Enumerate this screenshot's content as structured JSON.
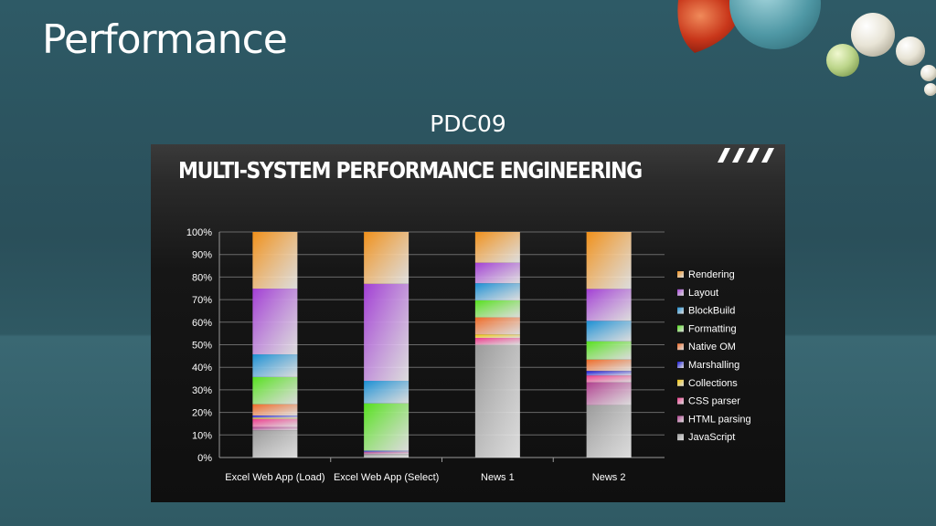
{
  "slide": {
    "title": "Performance",
    "subtitle": "PDC09",
    "panel_heading": "MULTI-SYSTEM PERFORMANCE ENGINEERING"
  },
  "chart_data": {
    "type": "bar",
    "stacked": "percent",
    "categories": [
      "Excel Web App (Load)",
      "Excel Web App (Select)",
      "News 1",
      "News 2"
    ],
    "series": [
      {
        "name": "JavaScript",
        "color": "#9a9a9a",
        "values": [
          12,
          1.5,
          33,
          23
        ]
      },
      {
        "name": "HTML parsing",
        "color": "#b0408f",
        "values": [
          1.5,
          1,
          0,
          10
        ]
      },
      {
        "name": "CSS parser",
        "color": "#ee3a8c",
        "values": [
          3.5,
          0,
          2,
          3
        ]
      },
      {
        "name": "Collections",
        "color": "#f2c400",
        "values": [
          0.5,
          0,
          1,
          0
        ]
      },
      {
        "name": "Marshalling",
        "color": "#1414d6",
        "values": [
          1,
          0.5,
          0,
          2
        ]
      },
      {
        "name": "Native OM",
        "color": "#ef6a25",
        "values": [
          5,
          0,
          5,
          5
        ]
      },
      {
        "name": "Formatting",
        "color": "#56e01e",
        "values": [
          12,
          21,
          5,
          8
        ]
      },
      {
        "name": "BlockBuild",
        "color": "#1a8fd4",
        "values": [
          10,
          10,
          5,
          9
        ]
      },
      {
        "name": "Layout",
        "color": "#a23fd4",
        "values": [
          29,
          43,
          6,
          14
        ]
      },
      {
        "name": "Rendering",
        "color": "#f0901a",
        "values": [
          25,
          23,
          9,
          25
        ]
      }
    ],
    "y_ticks": [
      "0%",
      "10%",
      "20%",
      "30%",
      "40%",
      "50%",
      "60%",
      "70%",
      "80%",
      "90%",
      "100%"
    ],
    "ylim": [
      0,
      100
    ],
    "grid": true,
    "legend": "right"
  }
}
